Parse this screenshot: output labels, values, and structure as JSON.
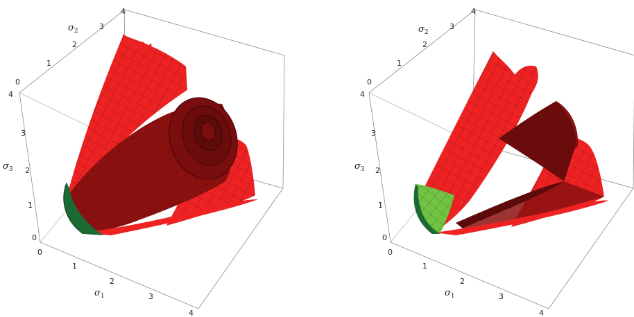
{
  "colors": {
    "surface_light": "#ee2222",
    "surface_dark": "#8b1010",
    "surface_darker": "#5e0a0a",
    "cap_dark_green": "#1c6a33",
    "cap_light_green": "#72c244",
    "mesh": "#3a1010",
    "box": "#8a8a8a"
  },
  "panels": [
    {
      "sigma1_label": "σ",
      "sigma1_sub": "1",
      "sigma2_label": "σ",
      "sigma2_sub": "2",
      "sigma3_label": "σ",
      "sigma3_sub": "3",
      "ticks_sigma1": [
        "0",
        "1",
        "2",
        "3",
        "4"
      ],
      "ticks_sigma2": [
        "0",
        "1",
        "2",
        "3",
        "4"
      ],
      "ticks_sigma3": [
        "0",
        "1",
        "2",
        "3",
        "4"
      ],
      "cap": "dark-green"
    },
    {
      "sigma1_label": "σ",
      "sigma1_sub": "1",
      "sigma2_label": "σ",
      "sigma2_sub": "2",
      "sigma3_label": "σ",
      "sigma3_sub": "3",
      "ticks_sigma1": [
        "0",
        "1",
        "2",
        "3",
        "4"
      ],
      "ticks_sigma2": [
        "0",
        "1",
        "2",
        "3",
        "4"
      ],
      "ticks_sigma3": [
        "0",
        "1",
        "2",
        "3",
        "4"
      ],
      "cap": "light-green"
    }
  ]
}
